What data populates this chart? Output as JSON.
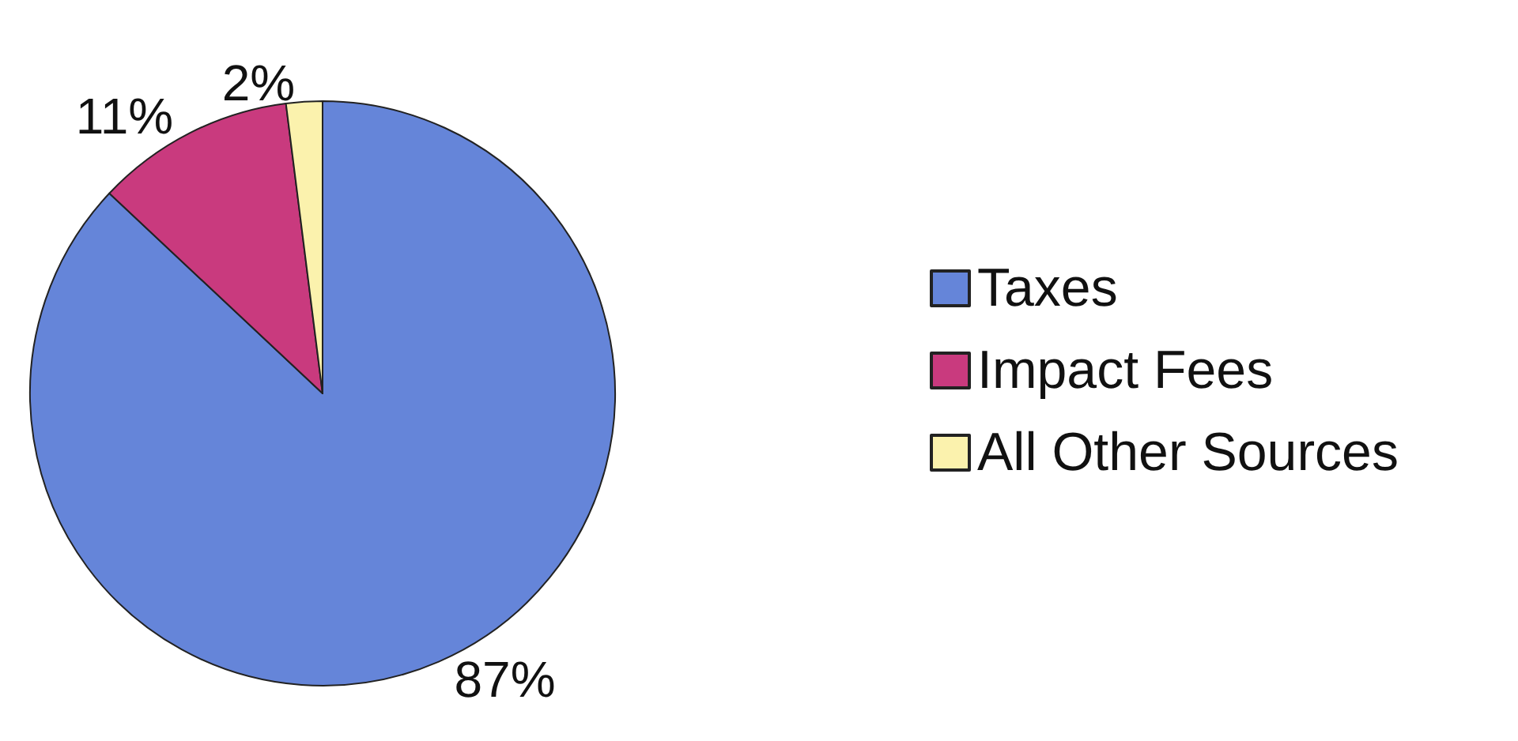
{
  "chart_data": {
    "type": "pie",
    "categories": [
      "Taxes",
      "Impact Fees",
      "All Other Sources"
    ],
    "values": [
      87,
      11,
      2
    ],
    "colors": [
      "#6585d9",
      "#c93a7e",
      "#fbf2ad"
    ],
    "value_labels": [
      "87%",
      "11%",
      "2%"
    ],
    "legend": "right"
  }
}
